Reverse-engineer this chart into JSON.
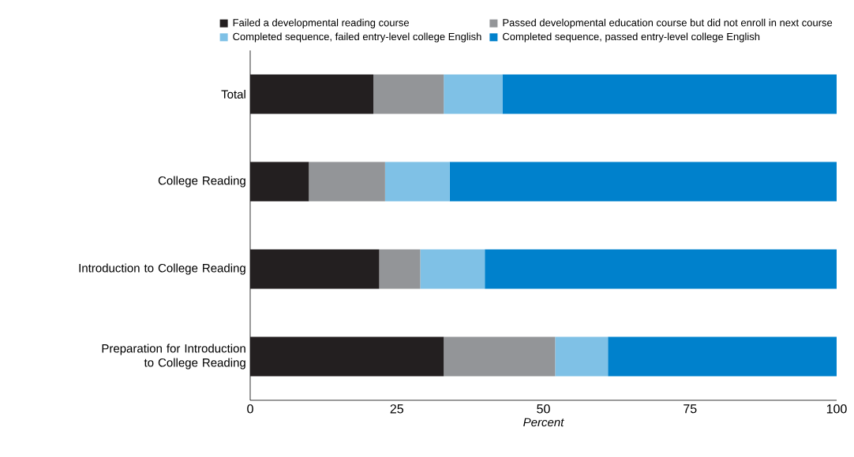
{
  "chart_data": {
    "type": "bar",
    "orientation": "horizontal",
    "stacked": true,
    "xlabel": "Percent",
    "categories": [
      "Total",
      "College Reading",
      "Introduction to College Reading",
      "Preparation for Introduction to College Reading"
    ],
    "series": [
      {
        "name": "Failed a developmental reading course",
        "color": "#231f20",
        "values": [
          21,
          10,
          22,
          33
        ]
      },
      {
        "name": "Passed developmental education course but did not enroll in next course",
        "color": "#939598",
        "values": [
          12,
          13,
          7,
          19
        ]
      },
      {
        "name": "Completed sequence, failed entry-level college English",
        "color": "#7fc1e6",
        "values": [
          10,
          11,
          11,
          9
        ]
      },
      {
        "name": "Completed sequence, passed entry-level college English",
        "color": "#0081cc",
        "values": [
          57,
          66,
          60,
          39
        ]
      }
    ],
    "xlim": [
      0,
      100
    ],
    "xticks": [
      0,
      25,
      50,
      75,
      100
    ],
    "legend": "top"
  }
}
